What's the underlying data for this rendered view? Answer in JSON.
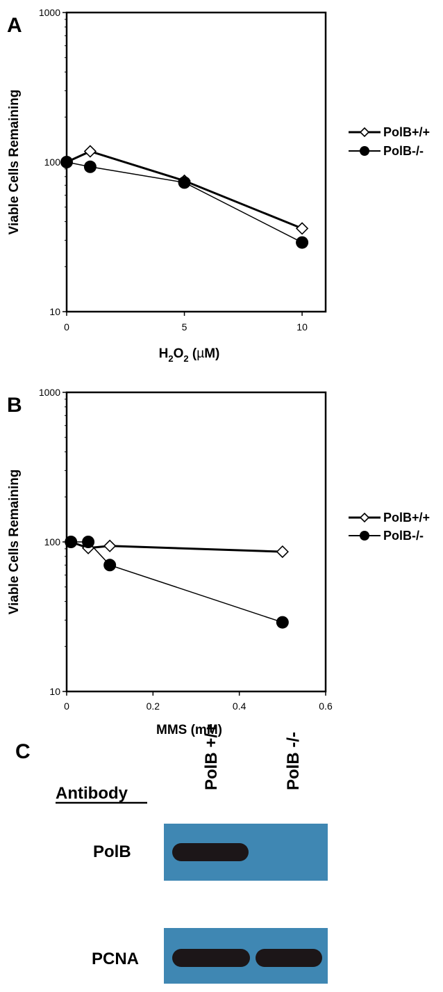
{
  "chart_data": [
    {
      "panel": "A",
      "type": "line",
      "xlabel": "H2O2 (µM)",
      "xlabel_parts": {
        "a": "H",
        "sub1": "2",
        "b": "O",
        "sub2": "2",
        "c": " (",
        "mu": "µ",
        "d": "M)"
      },
      "ylabel": "Viable Cells Remaining",
      "yscale": "log",
      "xlim": [
        0,
        11
      ],
      "ylim": [
        10,
        1000
      ],
      "xticks": [
        0,
        5,
        10
      ],
      "xtick_labels": [
        "0",
        "5",
        "10"
      ],
      "yticks": [
        10,
        100,
        1000
      ],
      "ytick_labels": [
        "10",
        "100",
        "1000"
      ],
      "legend_position": "right",
      "series": [
        {
          "name": "PolB+/+",
          "marker": "open-diamond",
          "x": [
            0,
            1,
            5,
            10
          ],
          "y": [
            100,
            118,
            75,
            36
          ]
        },
        {
          "name": "PolB-/-",
          "marker": "filled-circle",
          "x": [
            0,
            1,
            5,
            10
          ],
          "y": [
            100,
            93,
            73,
            29
          ]
        }
      ]
    },
    {
      "panel": "B",
      "type": "line",
      "xlabel": "MMS (mM)",
      "ylabel": "Viable Cells Remaining",
      "yscale": "log",
      "xlim": [
        0,
        0.6
      ],
      "ylim": [
        10,
        1000
      ],
      "xticks": [
        0,
        0.2,
        0.4,
        0.6
      ],
      "xtick_labels": [
        "0",
        "0.2",
        "0.4",
        "0.6"
      ],
      "yticks": [
        10,
        100,
        1000
      ],
      "ytick_labels": [
        "10",
        "100",
        "1000"
      ],
      "legend_position": "right",
      "series": [
        {
          "name": "PolB+/+",
          "marker": "open-diamond",
          "x": [
            0.01,
            0.05,
            0.1,
            0.5
          ],
          "y": [
            100,
            91,
            94,
            86
          ]
        },
        {
          "name": "PolB-/-",
          "marker": "filled-circle",
          "x": [
            0.01,
            0.05,
            0.1,
            0.5
          ],
          "y": [
            100,
            100,
            70,
            29
          ]
        }
      ]
    }
  ],
  "panel_c": {
    "letter": "C",
    "heading": "Antibody",
    "lanes": [
      "PolB +/+",
      "PolB -/-"
    ],
    "rows": [
      {
        "label": "PolB",
        "bands": [
          1,
          0
        ]
      },
      {
        "label": "PCNA",
        "bands": [
          1,
          1
        ]
      }
    ],
    "colors": {
      "membrane": "#3f87b3",
      "band": "#1c1618"
    }
  }
}
